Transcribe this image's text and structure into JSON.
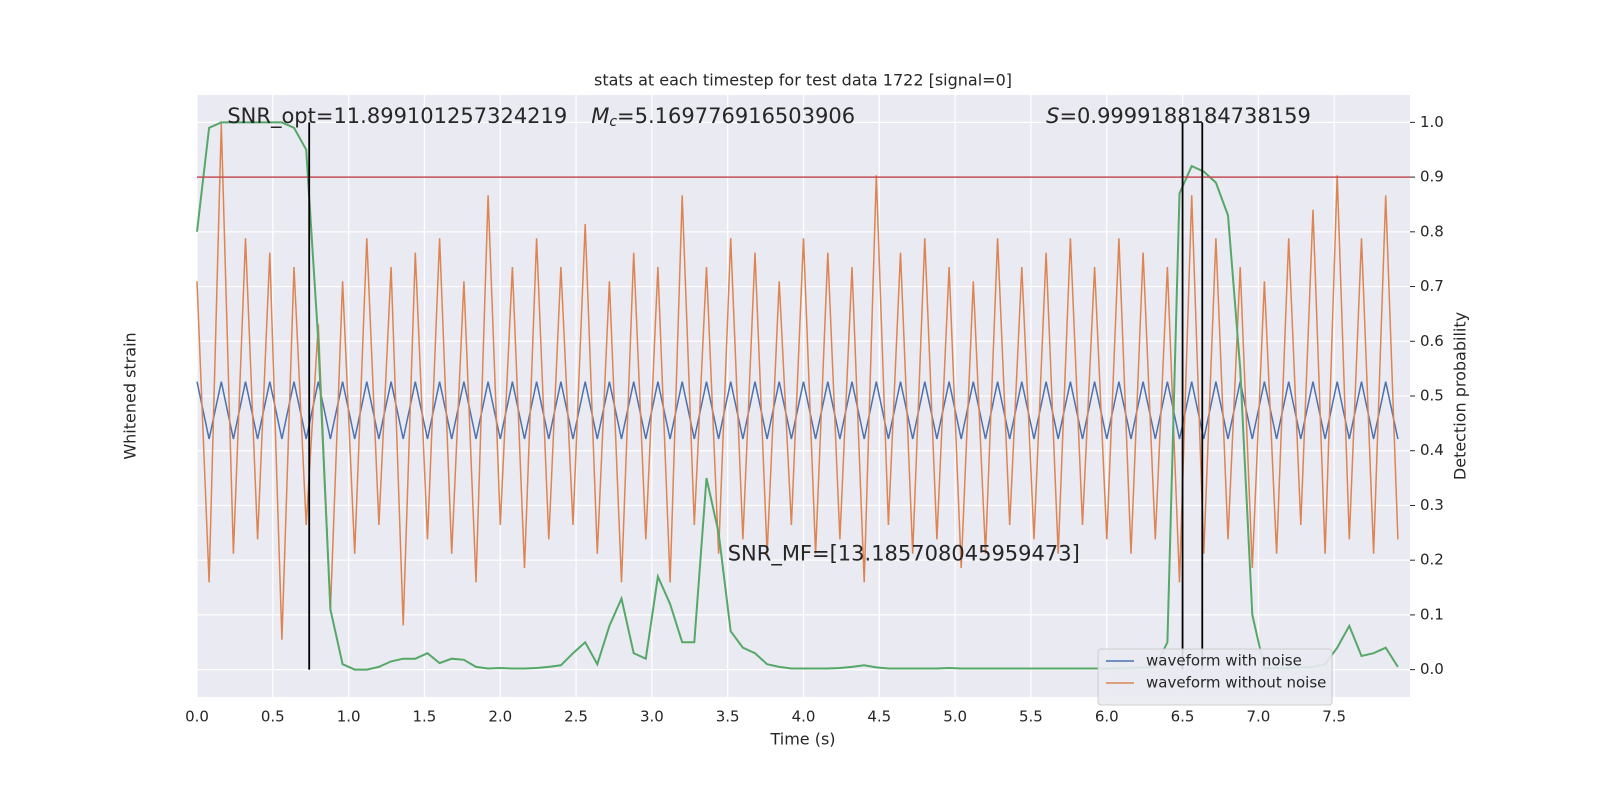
{
  "chart_data": {
    "type": "line",
    "title": "stats at each timestep for test data 1722 [signal=0]",
    "xlabel": "Time (s)",
    "ylabel": "Whitened strain",
    "y2label": "Detection probability",
    "xlim": [
      0,
      8
    ],
    "ylim": [
      -1,
      1.1
    ],
    "y2lim": [
      -0.05,
      1.05
    ],
    "xticks": [
      {
        "value": 0,
        "label": "0.0"
      },
      0.5,
      {
        "value": 1,
        "label": "1.0"
      },
      1.5,
      {
        "value": 2,
        "label": "2.0"
      },
      2.5,
      {
        "value": 3,
        "label": "3.0"
      },
      3.5,
      {
        "value": 4,
        "label": "4.0"
      },
      4.5,
      {
        "value": 5,
        "label": "5.0"
      },
      5.5,
      {
        "value": 6,
        "label": "6.0"
      },
      6.5,
      {
        "value": 7,
        "label": "7.0"
      },
      7.5
    ],
    "y2ticks": [
      {
        "value": 0,
        "label": "0.0"
      },
      0.1,
      0.2,
      0.3,
      0.4,
      0.5,
      0.6,
      0.7,
      0.8,
      0.9,
      {
        "value": 1,
        "label": "1.0"
      }
    ],
    "grid": true,
    "legend": "lower right",
    "x": [
      0,
      0.08,
      0.16,
      0.24,
      0.32,
      0.4,
      0.48,
      0.56,
      0.64,
      0.72,
      0.8,
      0.88,
      0.96,
      1.04,
      1.12,
      1.2,
      1.28,
      1.36,
      1.44,
      1.52,
      1.6,
      1.68,
      1.76,
      1.84,
      1.92,
      2,
      2.08,
      2.16,
      2.24,
      2.32,
      2.4,
      2.48,
      2.56,
      2.64,
      2.72,
      2.8,
      2.88,
      2.96,
      3.04,
      3.12,
      3.2,
      3.28,
      3.36,
      3.44,
      3.52,
      3.6,
      3.68,
      3.76,
      3.84,
      3.92,
      4,
      4.08,
      4.16,
      4.24,
      4.32,
      4.4,
      4.48,
      4.56,
      4.64,
      4.72,
      4.8,
      4.88,
      4.96,
      5.04,
      5.12,
      5.2,
      5.28,
      5.36,
      5.44,
      5.52,
      5.6,
      5.68,
      5.76,
      5.84,
      5.92,
      6,
      6.08,
      6.16,
      6.24,
      6.32,
      6.4,
      6.48,
      6.56,
      6.64,
      6.72,
      6.8,
      6.88,
      6.96,
      7.04,
      7.12,
      7.2,
      7.28,
      7.36,
      7.44,
      7.52,
      7.6,
      7.68,
      7.76,
      7.84,
      7.92
    ],
    "series": [
      {
        "name": "waveform with noise",
        "color": "#4c72b0",
        "axis": "y",
        "values": [
          0.1,
          -0.1,
          0.1,
          -0.1,
          0.1,
          -0.1,
          0.1,
          -0.1,
          0.1,
          -0.1,
          0.1,
          -0.1,
          0.1,
          -0.1,
          0.1,
          -0.1,
          0.1,
          -0.1,
          0.1,
          -0.1,
          0.1,
          -0.1,
          0.1,
          -0.1,
          0.1,
          -0.1,
          0.1,
          -0.1,
          0.1,
          -0.1,
          0.1,
          -0.1,
          0.1,
          -0.1,
          0.1,
          -0.1,
          0.1,
          -0.1,
          0.1,
          -0.1,
          0.1,
          -0.1,
          0.1,
          -0.1,
          0.1,
          -0.1,
          0.1,
          -0.1,
          0.1,
          -0.1,
          0.1,
          -0.1,
          0.1,
          -0.1,
          0.1,
          -0.1,
          0.1,
          -0.1,
          0.1,
          -0.1,
          0.1,
          -0.1,
          0.1,
          -0.1,
          0.1,
          -0.1,
          0.1,
          -0.1,
          0.1,
          -0.1,
          0.1,
          -0.1,
          0.1,
          -0.1,
          0.1,
          -0.1,
          0.1,
          -0.1,
          0.1,
          -0.1,
          0.1,
          -0.1,
          0.1,
          -0.1,
          0.1,
          -0.1,
          0.1,
          -0.1,
          0.1,
          -0.1,
          0.1,
          -0.1,
          0.1,
          -0.1,
          0.1,
          -0.1,
          0.1,
          -0.1,
          0.1,
          -0.1
        ]
      },
      {
        "name": "waveform without noise",
        "color": "#dd8452",
        "axis": "y",
        "values": [
          0.45,
          -0.6,
          1.0,
          -0.5,
          0.6,
          -0.45,
          0.55,
          -0.8,
          0.5,
          -0.4,
          0.3,
          -0.7,
          0.45,
          -0.5,
          0.6,
          -0.4,
          0.5,
          -0.75,
          0.55,
          -0.45,
          0.6,
          -0.5,
          0.45,
          -0.6,
          0.75,
          -0.4,
          0.5,
          -0.55,
          0.6,
          -0.45,
          0.5,
          -0.4,
          0.65,
          -0.5,
          0.45,
          -0.6,
          0.55,
          -0.45,
          0.5,
          -0.6,
          0.75,
          -0.4,
          0.5,
          -0.5,
          0.6,
          -0.45,
          0.55,
          -0.5,
          0.45,
          -0.4,
          0.6,
          -0.5,
          0.55,
          -0.45,
          0.5,
          -0.6,
          0.82,
          -0.4,
          0.55,
          -0.5,
          0.6,
          -0.45,
          0.5,
          -0.55,
          0.45,
          -0.5,
          0.6,
          -0.4,
          0.5,
          -0.45,
          0.55,
          -0.5,
          0.6,
          -0.4,
          0.5,
          -0.45,
          0.6,
          -0.5,
          0.55,
          -0.45,
          0.5,
          -0.6,
          0.75,
          -0.5,
          0.6,
          -0.45,
          0.5,
          -0.55,
          0.45,
          -0.5,
          0.6,
          -0.4,
          0.7,
          -0.5,
          0.82,
          -0.45,
          0.6,
          -0.5,
          0.75,
          -0.45
        ]
      },
      {
        "name": "Detection probability",
        "color": "#55a868",
        "axis": "y2",
        "legend": false,
        "values": [
          0.8,
          0.99,
          1.0,
          1.0,
          1.0,
          1.0,
          1.0,
          1.0,
          0.99,
          0.95,
          0.6,
          0.11,
          0.01,
          0.0,
          0.0,
          0.005,
          0.015,
          0.02,
          0.02,
          0.03,
          0.012,
          0.02,
          0.018,
          0.005,
          0.002,
          0.003,
          0.002,
          0.002,
          0.003,
          0.005,
          0.008,
          0.03,
          0.05,
          0.01,
          0.08,
          0.13,
          0.03,
          0.02,
          0.17,
          0.12,
          0.05,
          0.05,
          0.35,
          0.25,
          0.07,
          0.04,
          0.03,
          0.01,
          0.005,
          0.002,
          0.002,
          0.002,
          0.002,
          0.003,
          0.005,
          0.008,
          0.004,
          0.002,
          0.002,
          0.002,
          0.002,
          0.002,
          0.003,
          0.002,
          0.002,
          0.002,
          0.002,
          0.002,
          0.002,
          0.002,
          0.002,
          0.002,
          0.002,
          0.002,
          0.002,
          0.002,
          0.002,
          0.003,
          0.004,
          0.005,
          0.05,
          0.87,
          0.92,
          0.91,
          0.89,
          0.83,
          0.55,
          0.1,
          0.003,
          0.003,
          0.003,
          0.004,
          0.005,
          0.01,
          0.04,
          0.08,
          0.025,
          0.03,
          0.04,
          0.005
        ]
      }
    ],
    "hline": {
      "value": 0.9,
      "axis": "y2",
      "color": "#c44e52"
    },
    "vlines": {
      "values": [
        0.74,
        6.5,
        6.63
      ],
      "from": 0,
      "to": 1,
      "axis": "y2",
      "color": "#000000"
    },
    "annotations": [
      {
        "text": "SNR_opt=11.899101257324219",
        "x": 0.2,
        "y": 1.01
      },
      {
        "symbol": "M",
        "subscript": "c",
        "text": "=5.169776916503906",
        "x": 2.6,
        "y": 1.01
      },
      {
        "symbol": "S",
        "text": "=0.9999188184738159",
        "x": 5.6,
        "y": 1.01
      },
      {
        "text": "SNR_MF=[13.185708045959473]",
        "x": 3.5,
        "y": 0.21
      }
    ]
  }
}
